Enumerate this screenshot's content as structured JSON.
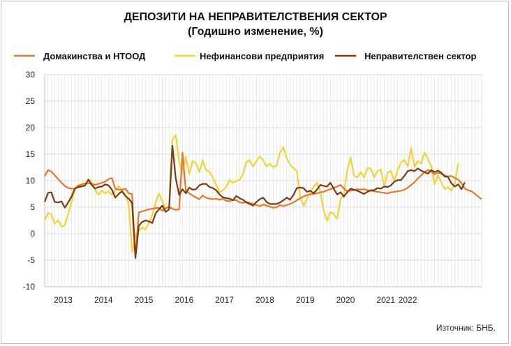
{
  "chart_data": {
    "type": "line",
    "title": "ДЕПОЗИТИ НА НЕПРАВИТЕЛСТВЕНИЯ СЕКТОР",
    "subtitle": "(Годишно изменение, %)",
    "source": "Източник:  БНБ.",
    "ylim": [
      -10,
      30
    ],
    "y_ticks": [
      -10,
      -5,
      0,
      5,
      10,
      15,
      20,
      25,
      30
    ],
    "grid": true,
    "legend_position": "top",
    "x_start": "2013-01",
    "x_labels": [
      "2013",
      "2014",
      "2015",
      "2016",
      "2017",
      "2018",
      "2019",
      "2020",
      "2021",
      "2022"
    ],
    "series": [
      {
        "name": "Домакинства и НТООД",
        "color": "#e3782b",
        "values": [
          10.8,
          12.0,
          11.7,
          11.0,
          10.3,
          9.6,
          9.0,
          8.6,
          8.5,
          8.5,
          9.0,
          9.3,
          9.5,
          9.5,
          9.4,
          9.2,
          9.4,
          9.6,
          9.8,
          10.3,
          10.5,
          8.5,
          8.3,
          8.3,
          8.5,
          7.6,
          7.5,
          -4.5,
          4.0,
          4.2,
          4.4,
          4.6,
          4.7,
          4.8,
          4.9,
          4.3,
          4.8,
          5.0,
          4.7,
          4.5,
          4.6,
          15.3,
          8.1,
          7.6,
          7.2,
          6.8,
          6.5,
          7.2,
          6.8,
          6.6,
          6.5,
          6.6,
          6.4,
          6.6,
          6.2,
          6.1,
          6.4,
          6.3,
          5.9,
          5.8,
          6.0,
          5.8,
          5.6,
          5.4,
          5.2,
          5.5,
          5.3,
          5.1,
          4.9,
          5.0,
          5.4,
          5.2,
          5.4,
          5.6,
          5.9,
          6.3,
          6.7,
          7.0,
          7.3,
          7.4,
          7.5,
          7.6,
          7.8,
          7.9,
          8.2,
          8.4,
          8.6,
          8.9,
          9.2,
          8.5,
          8.0,
          8.1,
          8.2,
          8.4,
          8.3,
          8.4,
          8.2,
          8.1,
          8.0,
          7.9,
          7.8,
          7.7,
          7.6,
          7.8,
          7.9,
          8.0,
          8.1,
          8.3,
          8.7,
          9.2,
          9.7,
          10.4,
          11.0,
          11.6,
          12.0,
          11.7,
          11.2,
          11.5,
          11.3,
          11.0,
          10.8,
          10.9,
          10.5,
          10.2,
          9.5,
          8.5,
          8.2,
          8.0,
          7.5,
          7.0,
          6.5
        ]
      },
      {
        "name": "Нефинансови предприятия",
        "color": "#f2d237",
        "values": [
          2.5,
          3.9,
          3.7,
          1.9,
          2.5,
          1.3,
          1.6,
          3.8,
          6.0,
          8.4,
          9.3,
          9.2,
          9.0,
          10.2,
          9.8,
          8.3,
          7.3,
          8.1,
          7.6,
          8.0,
          7.3,
          8.1,
          9.0,
          8.1,
          7.5,
          5.5,
          -3.5,
          -0.3,
          0.5,
          1.2,
          0.8,
          2.0,
          3.5,
          5.8,
          7.6,
          6.1,
          4.7,
          5.3,
          17.7,
          18.6,
          13.5,
          11.5,
          14.5,
          11.2,
          13.7,
          13.3,
          11.6,
          13.8,
          12.0,
          11.7,
          10.6,
          9.2,
          7.8,
          8.2,
          8.8,
          10.1,
          9.6,
          9.9,
          10.2,
          11.2,
          13.5,
          13.9,
          12.6,
          13.7,
          14.6,
          13.8,
          12.7,
          13.2,
          12.5,
          12.9,
          15.3,
          16.3,
          14.3,
          13.0,
          12.4,
          11.8,
          7.0,
          5.2,
          6.5,
          7.9,
          8.8,
          9.6,
          7.9,
          4.4,
          2.4,
          4.1,
          3.7,
          2.8,
          6.5,
          7.4,
          12.0,
          14.4,
          11.0,
          10.6,
          11.6,
          10.6,
          12.4,
          12.3,
          10.6,
          11.8,
          12.1,
          9.0,
          11.5,
          11.8,
          9.9,
          12.0,
          13.4,
          13.9,
          12.7,
          16.2,
          12.6,
          13.7,
          13.2,
          15.3,
          14.1,
          12.7,
          9.3,
          11.0,
          9.7,
          8.4,
          8.8,
          8.1,
          9.5,
          13.2
        ]
      },
      {
        "name": "Неправителствен сектор",
        "color": "#7b3b12",
        "values": [
          6.0,
          7.7,
          7.8,
          6.0,
          5.9,
          6.1,
          4.9,
          5.9,
          7.0,
          8.5,
          8.8,
          8.9,
          9.1,
          10.2,
          9.2,
          8.5,
          8.8,
          8.9,
          9.3,
          9.1,
          8.3,
          6.8,
          7.5,
          8.0,
          7.1,
          6.6,
          5.8,
          -4.6,
          1.5,
          2.2,
          2.5,
          2.3,
          2.0,
          3.8,
          4.6,
          5.3,
          4.1,
          4.6,
          16.6,
          10.4,
          7.3,
          8.4,
          7.6,
          8.7,
          8.3,
          8.4,
          9.1,
          9.4,
          9.4,
          8.8,
          8.6,
          8.2,
          7.4,
          6.9,
          6.7,
          6.6,
          6.3,
          7.1,
          6.7,
          6.4,
          5.9,
          5.6,
          5.3,
          6.0,
          6.5,
          6.8,
          6.0,
          5.6,
          5.6,
          5.6,
          5.9,
          6.3,
          6.8,
          6.4,
          7.3,
          8.6,
          8.7,
          8.6,
          7.9,
          8.1,
          7.6,
          8.3,
          9.2,
          9.0,
          8.9,
          9.6,
          8.5,
          7.4,
          7.8,
          7.0,
          7.8,
          8.5,
          8.3,
          8.1,
          7.8,
          7.5,
          7.9,
          8.2,
          8.2,
          8.6,
          8.5,
          8.9,
          8.8,
          9.1,
          9.8,
          10.1,
          10.1,
          10.9,
          11.8,
          12.0,
          11.8,
          12.3,
          11.9,
          11.6,
          11.3,
          12.0,
          11.6,
          11.9,
          11.5,
          10.8,
          10.7,
          9.5,
          8.9,
          9.3,
          8.4,
          9.7
        ]
      }
    ]
  }
}
